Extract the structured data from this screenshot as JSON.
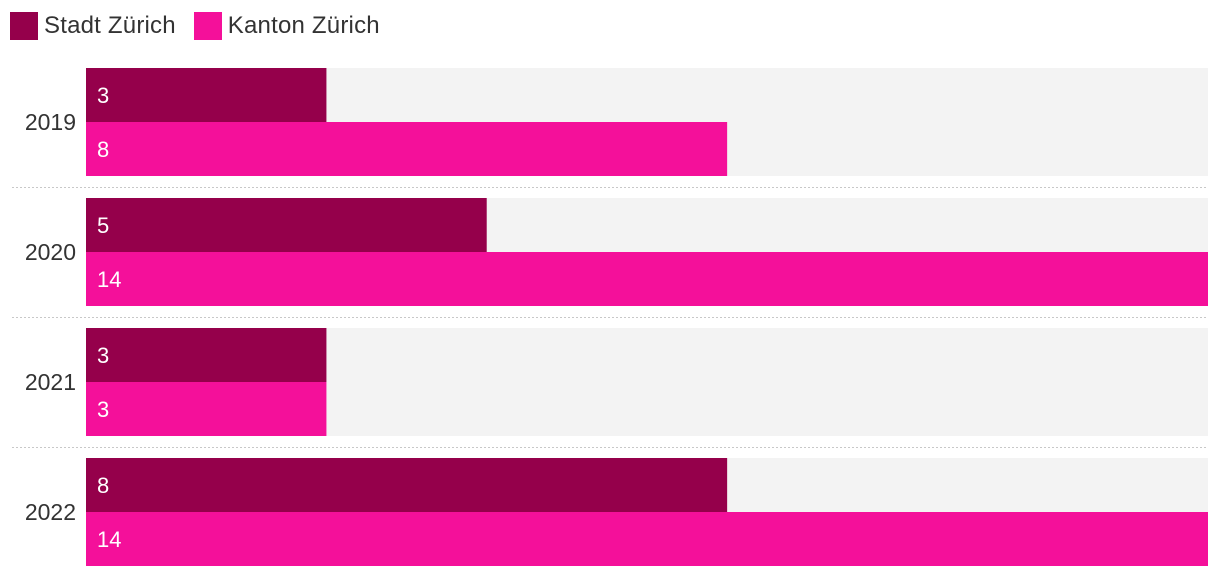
{
  "chart_data": {
    "type": "bar",
    "orientation": "horizontal",
    "categories": [
      "2019",
      "2020",
      "2021",
      "2022"
    ],
    "series": [
      {
        "name": "Stadt Zürich",
        "color": "#95004b",
        "values": [
          3,
          5,
          3,
          8
        ]
      },
      {
        "name": "Kanton Zürich",
        "color": "#f4109a",
        "values": [
          8,
          14,
          3,
          14
        ]
      }
    ],
    "xlim": [
      0,
      14
    ],
    "track_color": "#f3f3f3",
    "legend_position": "top-left",
    "grid": false
  }
}
